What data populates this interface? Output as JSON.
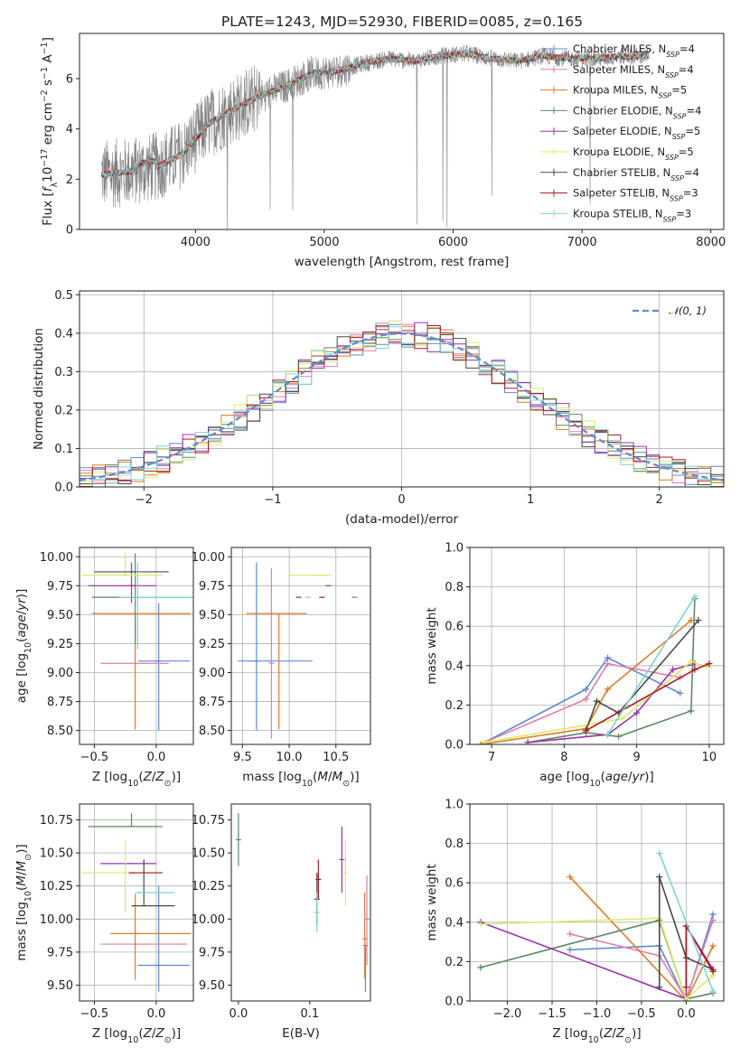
{
  "figure_title": "PLATE=1243, MJD=52930, FIBERID=0085, z=0.165",
  "colors": {
    "Chabrier MILES": "#5b8bd6",
    "Salpeter MILES": "#e87aab",
    "Kroupa MILES": "#e07b20",
    "Chabrier ELODIE": "#5a8a62",
    "Salpeter ELODIE": "#9b30b0",
    "Kroupa ELODIE": "#d9ec6a",
    "Chabrier STELIB": "#4a4a4a",
    "Salpeter STELIB": "#b0151f",
    "Kroupa STELIB": "#7ed4d4",
    "gaussian": "#5b8bd6",
    "data_spectrum": "#808080"
  },
  "chart_data": [
    {
      "id": "spectrum",
      "type": "line",
      "title": "PLATE=1243, MJD=52930, FIBERID=0085, z=0.165",
      "xlabel": "wavelength [Angstrom, rest frame]",
      "ylabel": "Flux [f_λ10^-17 erg cm^-2 s^-1 A^-1]",
      "xlim": [
        3100,
        8100
      ],
      "ylim": [
        0,
        7.8
      ],
      "xticks": [
        4000,
        5000,
        6000,
        7000,
        8000
      ],
      "yticks": [
        0,
        2,
        4,
        6
      ],
      "grid": false,
      "legend": "upper-right",
      "data_anchors": {
        "x": [
          3300,
          3500,
          3700,
          3900,
          4100,
          4300,
          4500,
          4700,
          4900,
          5100,
          5300,
          5500,
          5700,
          5900,
          6100,
          6300,
          6500,
          6700,
          6900,
          7100,
          7300,
          7500
        ],
        "y": [
          2.2,
          2.3,
          2.5,
          3.0,
          4.2,
          4.8,
          5.3,
          5.7,
          6.2,
          6.3,
          6.6,
          6.8,
          6.7,
          6.9,
          7.0,
          6.8,
          6.7,
          6.9,
          6.8,
          6.8,
          6.9,
          6.9
        ]
      },
      "series": [
        {
          "name": "Chabrier MILES",
          "nssp": "4"
        },
        {
          "name": "Salpeter MILES",
          "nssp": "4"
        },
        {
          "name": "Kroupa MILES",
          "nssp": "5"
        },
        {
          "name": "Chabrier ELODIE",
          "nssp": "4"
        },
        {
          "name": "Salpeter ELODIE",
          "nssp": "5"
        },
        {
          "name": "Kroupa ELODIE",
          "nssp": "5"
        },
        {
          "name": "Chabrier STELIB",
          "nssp": "4"
        },
        {
          "name": "Salpeter STELIB",
          "nssp": "3"
        },
        {
          "name": "Kroupa STELIB",
          "nssp": "3"
        }
      ]
    },
    {
      "id": "residuals",
      "type": "histogram",
      "xlabel": "(data-model)/error",
      "ylabel": "Normed distribution",
      "xlim": [
        -2.5,
        2.5
      ],
      "ylim": [
        0,
        0.51
      ],
      "xticks": [
        -2,
        -1,
        0,
        1,
        2
      ],
      "yticks": [
        0.0,
        0.1,
        0.2,
        0.3,
        0.4,
        0.5
      ],
      "bin_width": 0.1,
      "grid": true,
      "legend": "upper-right",
      "legend_label": "N(0,1)",
      "bin_start": -2.5
    },
    {
      "id": "age_vs_Z",
      "type": "errorbar",
      "xlabel": "Z [log10(Z/Z⊙)]",
      "ylabel": "age  [log10(age/yr)]",
      "xlim": [
        -0.62,
        0.3
      ],
      "ylim": [
        8.38,
        10.08
      ],
      "xticks": [
        -0.5,
        0.0
      ],
      "yticks": [
        8.5,
        8.75,
        9.0,
        9.25,
        9.5,
        9.75,
        10.0
      ],
      "grid": true,
      "points": [
        {
          "model": "Chabrier MILES",
          "x": 0.02,
          "xerr": [
            0.17,
            0.25
          ],
          "y": 9.1,
          "yerr": [
            0.6,
            0.5
          ]
        },
        {
          "model": "Salpeter MILES",
          "x": -0.1,
          "xerr": [
            0.35,
            0.2
          ],
          "y": 9.08,
          "yerr": [
            0.0,
            0.0
          ]
        },
        {
          "model": "Kroupa MILES",
          "x": -0.17,
          "xerr": [
            0.35,
            0.45
          ],
          "y": 9.51,
          "yerr": [
            1.0,
            0.0
          ]
        },
        {
          "model": "Chabrier ELODIE",
          "x": -0.17,
          "xerr": [
            0.35,
            0.45
          ],
          "y": 9.65,
          "yerr": [
            0.4,
            0.38
          ]
        },
        {
          "model": "Salpeter ELODIE",
          "x": -0.2,
          "xerr": [
            0.35,
            0.2
          ],
          "y": 9.75,
          "yerr": [
            0.15,
            0.2
          ]
        },
        {
          "model": "Kroupa ELODIE",
          "x": -0.25,
          "xerr": [
            0.35,
            0.3
          ],
          "y": 9.84,
          "yerr": [
            0.0,
            0.2
          ]
        },
        {
          "model": "Chabrier STELIB",
          "x": -0.2,
          "xerr": [
            0.3,
            0.3
          ],
          "y": 9.87,
          "yerr": [
            0.0,
            0.0
          ]
        },
        {
          "model": "Salpeter STELIB",
          "x": -0.2,
          "xerr": [
            0.0,
            0.0
          ],
          "y": 9.65,
          "yerr": [
            0.0,
            0.0
          ]
        },
        {
          "model": "Kroupa STELIB",
          "x": -0.15,
          "xerr": [
            0.15,
            0.45
          ],
          "y": 9.65,
          "yerr": [
            0.45,
            0.3
          ]
        }
      ]
    },
    {
      "id": "age_vs_mass",
      "type": "errorbar",
      "xlabel": "mass [log10(M/M⊙)]",
      "ylabel": "",
      "xlim": [
        9.38,
        10.87
      ],
      "ylim": [
        8.38,
        10.08
      ],
      "xticks": [
        9.5,
        10.0,
        10.5
      ],
      "yticks": [
        8.5,
        8.75,
        9.0,
        9.25,
        9.5,
        9.75,
        10.0
      ],
      "grid": true,
      "points": [
        {
          "model": "Chabrier MILES",
          "x": 9.65,
          "xerr": [
            0.2,
            0.6
          ],
          "y": 9.1,
          "yerr": [
            0.6,
            0.85
          ]
        },
        {
          "model": "Salpeter MILES",
          "x": 9.81,
          "xerr": [
            0.0,
            0.0
          ],
          "y": 9.08,
          "yerr": [
            0.65,
            0.82
          ]
        },
        {
          "model": "Kroupa MILES",
          "x": 9.89,
          "xerr": [
            0.35,
            0.3
          ],
          "y": 9.51,
          "yerr": [
            1.0,
            0.0
          ]
        },
        {
          "model": "Chabrier ELODIE",
          "x": 10.7,
          "xerr": [
            0.0,
            0.0
          ],
          "y": 9.65,
          "yerr": [
            0.0,
            0.0
          ]
        },
        {
          "model": "Salpeter ELODIE",
          "x": 10.42,
          "xerr": [
            0.0,
            0.0
          ],
          "y": 9.75,
          "yerr": [
            0.0,
            0.0
          ]
        },
        {
          "model": "Kroupa ELODIE",
          "x": 10.35,
          "xerr": [
            0.35,
            0.1
          ],
          "y": 9.84,
          "yerr": [
            0.0,
            0.0
          ]
        },
        {
          "model": "Chabrier STELIB",
          "x": 10.1,
          "xerr": [
            0.0,
            0.0
          ],
          "y": 9.65,
          "yerr": [
            0.0,
            0.0
          ]
        },
        {
          "model": "Salpeter STELIB",
          "x": 10.35,
          "xerr": [
            0.0,
            0.0
          ],
          "y": 9.65,
          "yerr": [
            0.0,
            0.0
          ]
        },
        {
          "model": "Kroupa STELIB",
          "x": 10.2,
          "xerr": [
            0.0,
            0.0
          ],
          "y": 9.65,
          "yerr": [
            0.0,
            0.0
          ]
        }
      ]
    },
    {
      "id": "weight_vs_age",
      "type": "line",
      "xlabel": "age  [log10(age/yr)]",
      "ylabel": "mass weight",
      "xlim": [
        6.7,
        10.2
      ],
      "ylim": [
        0,
        1.0
      ],
      "xticks": [
        7,
        8,
        9,
        10
      ],
      "yticks": [
        0.0,
        0.2,
        0.4,
        0.6,
        0.8,
        1.0
      ],
      "grid": true,
      "series": [
        {
          "model": "Chabrier MILES",
          "x": [
            6.85,
            8.3,
            8.6,
            9.6
          ],
          "y": [
            0.0,
            0.28,
            0.44,
            0.26
          ]
        },
        {
          "model": "Salpeter MILES",
          "x": [
            6.9,
            8.3,
            8.6,
            9.6
          ],
          "y": [
            0.01,
            0.23,
            0.41,
            0.34
          ]
        },
        {
          "model": "Kroupa MILES",
          "x": [
            6.85,
            8.3,
            8.6,
            9.75
          ],
          "y": [
            0.0,
            0.08,
            0.28,
            0.63
          ]
        },
        {
          "model": "Chabrier ELODIE",
          "x": [
            7.5,
            8.3,
            8.75,
            9.75,
            9.8
          ],
          "y": [
            0.01,
            0.06,
            0.04,
            0.17,
            0.74
          ]
        },
        {
          "model": "Salpeter ELODIE",
          "x": [
            7.5,
            8.6,
            9.0,
            9.5,
            9.8
          ],
          "y": [
            0.01,
            0.05,
            0.16,
            0.38,
            0.41
          ]
        },
        {
          "model": "Kroupa ELODIE",
          "x": [
            6.9,
            8.8,
            9.75,
            10.0
          ],
          "y": [
            0.01,
            0.13,
            0.42,
            0.39
          ]
        },
        {
          "model": "Chabrier STELIB",
          "x": [
            8.3,
            8.45,
            8.75,
            9.85
          ],
          "y": [
            0.07,
            0.22,
            0.16,
            0.63
          ]
        },
        {
          "model": "Salpeter STELIB",
          "x": [
            8.3,
            9.8,
            10.0
          ],
          "y": [
            0.07,
            0.38,
            0.41
          ]
        },
        {
          "model": "Kroupa STELIB",
          "x": [
            8.6,
            9.8
          ],
          "y": [
            0.05,
            0.75
          ]
        }
      ]
    },
    {
      "id": "mass_vs_Z",
      "type": "errorbar",
      "xlabel": "Z [log10(Z/Z⊙)]",
      "ylabel": "mass [log10(M/M⊙)]",
      "xlim": [
        -0.62,
        0.3
      ],
      "ylim": [
        9.38,
        10.87
      ],
      "xticks": [
        -0.5,
        0.0
      ],
      "yticks": [
        9.5,
        9.75,
        10.0,
        10.25,
        10.5,
        10.75
      ],
      "grid": true,
      "points": [
        {
          "model": "Chabrier MILES",
          "x": 0.02,
          "xerr": [
            0.17,
            0.25
          ],
          "y": 9.65,
          "yerr": [
            0.2,
            0.6
          ]
        },
        {
          "model": "Salpeter MILES",
          "x": -0.1,
          "xerr": [
            0.35,
            0.35
          ],
          "y": 9.81,
          "yerr": [
            0.0,
            0.0
          ]
        },
        {
          "model": "Kroupa MILES",
          "x": -0.17,
          "xerr": [
            0.2,
            0.45
          ],
          "y": 9.89,
          "yerr": [
            0.35,
            0.3
          ]
        },
        {
          "model": "Chabrier ELODIE",
          "x": -0.2,
          "xerr": [
            0.35,
            0.25
          ],
          "y": 10.7,
          "yerr": [
            0.0,
            0.1
          ]
        },
        {
          "model": "Salpeter ELODIE",
          "x": -0.2,
          "xerr": [
            0.25,
            0.2
          ],
          "y": 10.42,
          "yerr": [
            0.0,
            0.0
          ]
        },
        {
          "model": "Kroupa ELODIE",
          "x": -0.25,
          "xerr": [
            0.35,
            0.3
          ],
          "y": 10.35,
          "yerr": [
            0.3,
            0.25
          ]
        },
        {
          "model": "Chabrier STELIB",
          "x": -0.1,
          "xerr": [
            0.1,
            0.25
          ],
          "y": 10.1,
          "yerr": [
            0.0,
            0.35
          ]
        },
        {
          "model": "Salpeter STELIB",
          "x": -0.2,
          "xerr": [
            0.0,
            0.25
          ],
          "y": 10.35,
          "yerr": [
            0.0,
            0.0
          ]
        },
        {
          "model": "Kroupa STELIB",
          "x": -0.15,
          "xerr": [
            0.0,
            0.3
          ],
          "y": 10.2,
          "yerr": [
            0.0,
            0.0
          ]
        }
      ]
    },
    {
      "id": "mass_vs_EBV",
      "type": "errorbar",
      "xlabel": "E(B-V)",
      "ylabel": "",
      "xlim": [
        -0.01,
        0.185
      ],
      "ylim": [
        9.38,
        10.87
      ],
      "xticks": [
        0.0,
        0.1
      ],
      "yticks": [
        9.5,
        9.75,
        10.0,
        10.25,
        10.5,
        10.75
      ],
      "grid": false,
      "points": [
        {
          "model": "Chabrier MILES",
          "x": 0.178,
          "xerr": [
            0.0,
            0.0
          ],
          "y": 9.8,
          "yerr": [
            0.35,
            0.0
          ]
        },
        {
          "model": "Salpeter MILES",
          "x": 0.18,
          "xerr": [
            0.0,
            0.0
          ],
          "y": 10.0,
          "yerr": [
            0.35,
            0.33
          ]
        },
        {
          "model": "Kroupa MILES",
          "x": 0.177,
          "xerr": [
            0.0,
            0.0
          ],
          "y": 9.85,
          "yerr": [
            0.3,
            0.35
          ]
        },
        {
          "model": "Chabrier ELODIE",
          "x": 0.0,
          "xerr": [
            0.0,
            0.0
          ],
          "y": 10.6,
          "yerr": [
            0.2,
            0.2
          ]
        },
        {
          "model": "Salpeter ELODIE",
          "x": 0.145,
          "xerr": [
            0.0,
            0.0
          ],
          "y": 10.45,
          "yerr": [
            0.25,
            0.25
          ]
        },
        {
          "model": "Kroupa ELODIE",
          "x": 0.15,
          "xerr": [
            0.0,
            0.0
          ],
          "y": 10.35,
          "yerr": [
            0.25,
            0.25
          ]
        },
        {
          "model": "Chabrier STELIB",
          "x": 0.11,
          "xerr": [
            0.0,
            0.0
          ],
          "y": 10.15,
          "yerr": [
            0.2,
            0.2
          ]
        },
        {
          "model": "Salpeter STELIB",
          "x": 0.112,
          "xerr": [
            0.0,
            0.0
          ],
          "y": 10.3,
          "yerr": [
            0.15,
            0.15
          ]
        },
        {
          "model": "Kroupa STELIB",
          "x": 0.11,
          "xerr": [
            0.0,
            0.0
          ],
          "y": 10.05,
          "yerr": [
            0.15,
            0.15
          ]
        }
      ]
    },
    {
      "id": "weight_vs_Z",
      "type": "line",
      "xlabel": "Z [log10(Z/Z⊙)]",
      "ylabel": "mass weight",
      "xlim": [
        -2.42,
        0.42
      ],
      "ylim": [
        0,
        1.0
      ],
      "xticks": [
        -2.0,
        -1.5,
        -1.0,
        -0.5,
        0.0
      ],
      "yticks": [
        0.0,
        0.2,
        0.4,
        0.6,
        0.8,
        1.0
      ],
      "grid": true,
      "series": [
        {
          "model": "Chabrier MILES",
          "x": [
            -1.3,
            -0.3,
            0.0,
            0.3
          ],
          "y": [
            0.26,
            0.28,
            0.0,
            0.44
          ]
        },
        {
          "model": "Salpeter MILES",
          "x": [
            -1.3,
            -0.3,
            0.0,
            0.3
          ],
          "y": [
            0.34,
            0.23,
            0.01,
            0.41
          ]
        },
        {
          "model": "Kroupa MILES",
          "x": [
            -1.3,
            0.0,
            0.3
          ],
          "y": [
            0.63,
            0.0,
            0.28
          ]
        },
        {
          "model": "Chabrier ELODIE",
          "x": [
            -2.3,
            -0.3,
            0.0,
            0.3
          ],
          "y": [
            0.17,
            0.41,
            0.01,
            0.04
          ]
        },
        {
          "model": "Salpeter ELODIE",
          "x": [
            -2.3,
            0.0,
            0.0,
            0.3
          ],
          "y": [
            0.4,
            0.01,
            0.38,
            0.16
          ]
        },
        {
          "model": "Kroupa ELODIE",
          "x": [
            -2.3,
            -0.3,
            0.0,
            0.3
          ],
          "y": [
            0.39,
            0.42,
            0.01,
            0.13
          ]
        },
        {
          "model": "Chabrier STELIB",
          "x": [
            -0.3,
            -0.3,
            0.0,
            0.3
          ],
          "y": [
            0.07,
            0.63,
            0.22,
            0.16
          ]
        },
        {
          "model": "Salpeter STELIB",
          "x": [
            0.0,
            0.0,
            0.3
          ],
          "y": [
            0.07,
            0.38,
            0.15
          ]
        },
        {
          "model": "Kroupa STELIB",
          "x": [
            -0.3,
            0.3
          ],
          "y": [
            0.75,
            0.05
          ]
        }
      ]
    }
  ]
}
